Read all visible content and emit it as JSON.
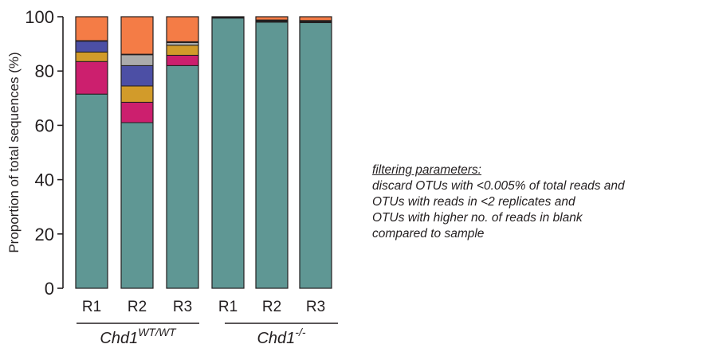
{
  "chart_data": {
    "type": "bar",
    "stacked": true,
    "ylabel": "Proportion of total sequences (%)",
    "ylim": [
      0,
      100
    ],
    "yticks": [
      0,
      20,
      40,
      60,
      80,
      100
    ],
    "categories": [
      "R1",
      "R2",
      "R3",
      "R1",
      "R2",
      "R3"
    ],
    "groups": [
      {
        "label": "Chd1",
        "superscript": "WT/WT",
        "categories": [
          0,
          1,
          2
        ]
      },
      {
        "label": "Chd1",
        "superscript": "-/-",
        "categories": [
          3,
          4,
          5
        ]
      }
    ],
    "series": [
      {
        "color": "#5f9794",
        "values": [
          71.5,
          61.0,
          82.0,
          99.5,
          98.0,
          97.8
        ]
      },
      {
        "color": "#cc1f6e",
        "values": [
          12.0,
          7.5,
          3.8,
          0,
          0,
          0
        ]
      },
      {
        "color": "#d29b2a",
        "values": [
          3.5,
          6.0,
          3.7,
          0,
          0,
          0
        ]
      },
      {
        "color": "#4c4fa5",
        "values": [
          4.0,
          7.5,
          0,
          0,
          0,
          0
        ]
      },
      {
        "color": "#ababab",
        "values": [
          0,
          4.0,
          1.0,
          0,
          0,
          0
        ]
      },
      {
        "color": "#231f20",
        "values": [
          0.2,
          0.2,
          0.3,
          0.3,
          0.8,
          0.8
        ]
      },
      {
        "color": "#f47c46",
        "values": [
          8.8,
          13.8,
          9.2,
          0.2,
          1.2,
          1.4
        ]
      }
    ],
    "grid": false,
    "legend": "none"
  },
  "note": {
    "heading": "filtering parameters:",
    "lines": [
      "discard OTUs with <0.005% of total reads and",
      "OTUs with reads in <2 replicates and",
      "OTUs with higher no. of reads in blank",
      "compared to sample"
    ]
  }
}
